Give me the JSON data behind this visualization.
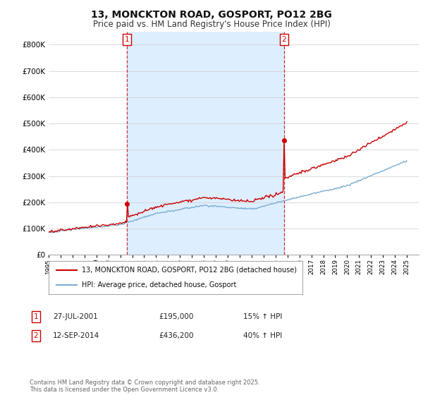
{
  "title": "13, MONCKTON ROAD, GOSPORT, PO12 2BG",
  "subtitle": "Price paid vs. HM Land Registry's House Price Index (HPI)",
  "legend_label_red": "13, MONCKTON ROAD, GOSPORT, PO12 2BG (detached house)",
  "legend_label_blue": "HPI: Average price, detached house, Gosport",
  "annotation1_label": "1",
  "annotation1_date": "27-JUL-2001",
  "annotation1_price": "£195,000",
  "annotation1_hpi": "15% ↑ HPI",
  "annotation2_label": "2",
  "annotation2_date": "12-SEP-2014",
  "annotation2_price": "£436,200",
  "annotation2_hpi": "40% ↑ HPI",
  "footnote": "Contains HM Land Registry data © Crown copyright and database right 2025.\nThis data is licensed under the Open Government Licence v3.0.",
  "xmin": 1995,
  "xmax": 2026,
  "ymin": 0,
  "ymax": 850000,
  "sale1_year": 2001.57,
  "sale2_year": 2014.71,
  "sale1_price": 195000,
  "sale2_price": 436200,
  "red_color": "#cc0000",
  "blue_color": "#7aadd4",
  "shade_color": "#ddeeff",
  "vline_color": "#cc0000",
  "grid_color": "#cccccc",
  "background_color": "#ffffff",
  "title_fontsize": 10,
  "subtitle_fontsize": 8.5
}
